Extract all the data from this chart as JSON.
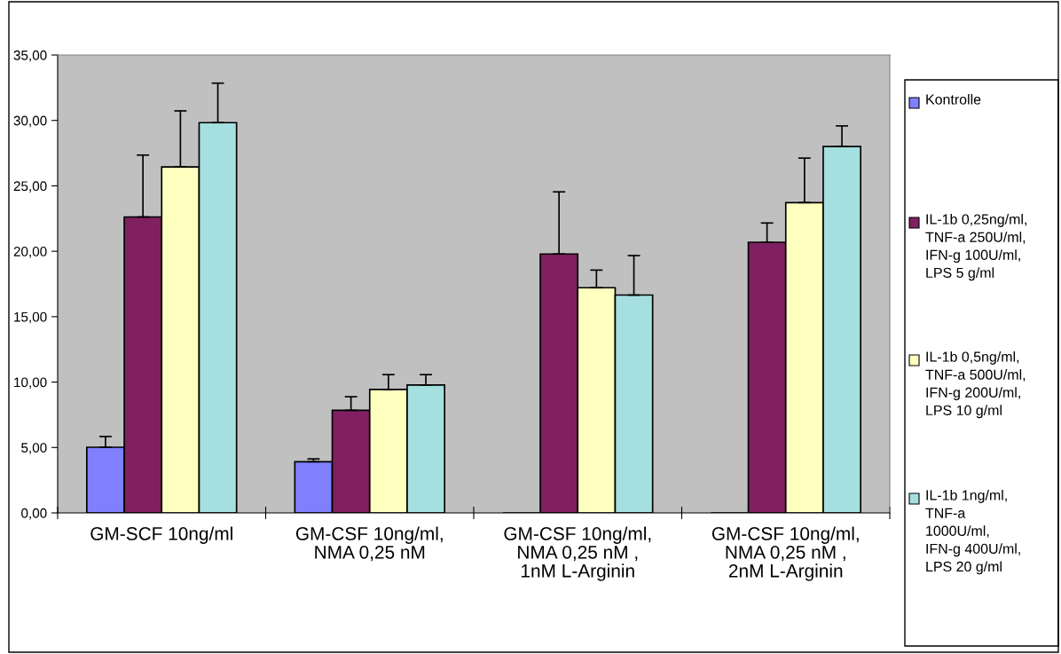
{
  "chart_data": {
    "type": "bar",
    "categories": [
      "GM-SCF 10ng/ml",
      "GM-CSF 10ng/ml,\nNMA 0,25 nM",
      "GM-CSF 10ng/ml,\nNMA 0,25 nM ,\n1nM L-Arginin",
      "GM-CSF 10ng/ml,\nNMA 0,25 nM ,\n2nM L-Arginin"
    ],
    "series": [
      {
        "name": "Kontrolle",
        "color": "#8080ff",
        "values": [
          5.02,
          3.91,
          null,
          null
        ],
        "errors": [
          [
            5.02,
            5.84
          ],
          [
            3.91,
            4.13
          ],
          null,
          null
        ]
      },
      {
        "name": "IL-1b 0,25ng/ml,\nTNF-a 250U/ml,\nIFN-g 100U/ml,\nLPS 5 g/ml",
        "color": "#802060",
        "values": [
          22.62,
          7.84,
          19.79,
          20.69
        ],
        "errors": [
          [
            22.62,
            27.35
          ],
          [
            7.84,
            8.88
          ],
          [
            19.79,
            24.54
          ],
          [
            20.69,
            22.16
          ]
        ]
      },
      {
        "name": "IL-1b 0,5ng/ml,\nTNF-a 500U/ml,\nIFN-g 200U/ml,\nLPS 10 g/ml",
        "color": "#ffffc0",
        "values": [
          26.45,
          9.44,
          17.21,
          23.72
        ],
        "errors": [
          [
            26.45,
            30.73
          ],
          [
            9.44,
            10.57
          ],
          [
            17.21,
            18.56
          ],
          [
            23.72,
            27.12
          ]
        ]
      },
      {
        "name": "IL-1b 1ng/ml,\nTNF-a\n1000U/ml,\nIFN-g 400U/ml,\nLPS 20 g/ml",
        "color": "#a6dfe0",
        "values": [
          29.83,
          9.78,
          16.65,
          28.0
        ],
        "errors": [
          [
            29.83,
            32.85
          ],
          [
            9.78,
            10.57
          ],
          [
            16.65,
            19.67
          ],
          [
            28.0,
            29.58
          ]
        ]
      }
    ],
    "ylim": [
      0,
      35
    ],
    "yticks": [
      {
        "value": 0,
        "label": "0,00"
      },
      {
        "value": 5,
        "label": "5,00"
      },
      {
        "value": 10,
        "label": "10,00"
      },
      {
        "value": 15,
        "label": "15,00"
      },
      {
        "value": 20,
        "label": "20,00"
      },
      {
        "value": 25,
        "label": "25,00"
      },
      {
        "value": 30,
        "label": "30,00"
      },
      {
        "value": 35,
        "label": "35,00"
      }
    ],
    "grid": false,
    "legend": "right"
  }
}
